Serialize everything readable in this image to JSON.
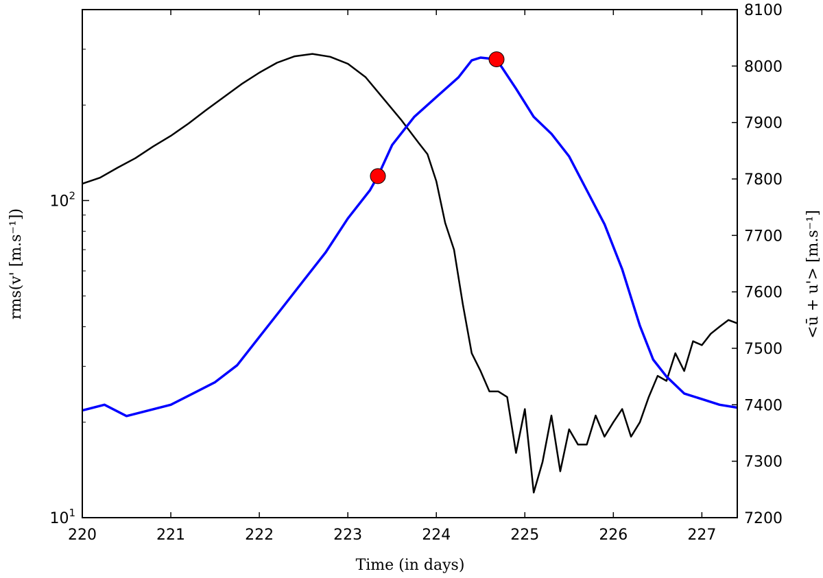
{
  "chart_data": {
    "type": "line",
    "xlabel": "Time (in days)",
    "ylabel_left": "rms(v' [m.s⁻¹])",
    "ylabel_right": "<ū + u'> [m.s⁻¹]",
    "xlim": [
      220,
      227.4
    ],
    "ylim_left": [
      10,
      400
    ],
    "yscale_left": "log",
    "ylim_right": [
      7200,
      8100
    ],
    "xticks": [
      "220",
      "221",
      "222",
      "223",
      "224",
      "225",
      "226",
      "227"
    ],
    "yticks_left": [
      {
        "value": 10,
        "base": "10",
        "exp": "1"
      },
      {
        "value": 100,
        "base": "10",
        "exp": "2"
      }
    ],
    "yticks_right": [
      "7200",
      "7300",
      "7400",
      "7500",
      "7600",
      "7700",
      "7800",
      "7900",
      "8000",
      "8100"
    ],
    "grid": false,
    "series": [
      {
        "color": "#000000",
        "axis": "left",
        "x": [
          220.0,
          220.2,
          220.4,
          220.6,
          220.8,
          221.0,
          221.2,
          221.4,
          221.6,
          221.8,
          222.0,
          222.2,
          222.4,
          222.6,
          222.8,
          223.0,
          223.2,
          223.4,
          223.6,
          223.8,
          223.9,
          224.0,
          224.1,
          224.2,
          224.3,
          224.4,
          224.5,
          224.6,
          224.7,
          224.8,
          224.9,
          225.0,
          225.1,
          225.2,
          225.3,
          225.4,
          225.5,
          225.6,
          225.7,
          225.8,
          225.9,
          226.0,
          226.1,
          226.2,
          226.3,
          226.4,
          226.5,
          226.6,
          226.7,
          226.8,
          226.9,
          227.0,
          227.1,
          227.2,
          227.3,
          227.4
        ],
        "values": [
          113,
          118,
          127,
          136,
          148,
          160,
          175,
          193,
          212,
          233,
          253,
          272,
          285,
          290,
          284,
          270,
          245,
          210,
          180,
          152,
          140,
          115,
          85,
          70,
          47,
          33,
          29,
          25,
          25,
          24,
          16,
          22,
          12,
          15,
          21,
          14,
          19,
          17,
          17,
          21,
          18,
          20,
          22,
          18,
          20,
          24,
          28,
          27,
          33,
          29,
          36,
          35,
          38,
          40,
          42,
          41
        ]
      },
      {
        "color": "#0000ff",
        "axis": "right",
        "x": [
          220.0,
          220.25,
          220.5,
          220.75,
          221.0,
          221.25,
          221.5,
          221.75,
          222.0,
          222.25,
          222.5,
          222.75,
          223.0,
          223.25,
          223.34,
          223.5,
          223.75,
          224.0,
          224.25,
          224.4,
          224.5,
          224.68,
          224.9,
          225.1,
          225.3,
          225.5,
          225.7,
          225.9,
          226.1,
          226.3,
          226.45,
          226.6,
          226.8,
          227.0,
          227.2,
          227.4
        ],
        "values": [
          7390,
          7400,
          7380,
          7390,
          7400,
          7420,
          7440,
          7470,
          7520,
          7570,
          7620,
          7670,
          7730,
          7780,
          7805,
          7860,
          7910,
          7945,
          7980,
          8010,
          8015,
          8012,
          7960,
          7910,
          7880,
          7840,
          7780,
          7720,
          7640,
          7540,
          7480,
          7450,
          7420,
          7410,
          7400,
          7395
        ]
      }
    ],
    "markers": [
      {
        "x": 223.34,
        "y": 7805,
        "axis": "right",
        "color": "#ff0000"
      },
      {
        "x": 224.68,
        "y": 8012,
        "axis": "right",
        "color": "#ff0000"
      }
    ]
  }
}
